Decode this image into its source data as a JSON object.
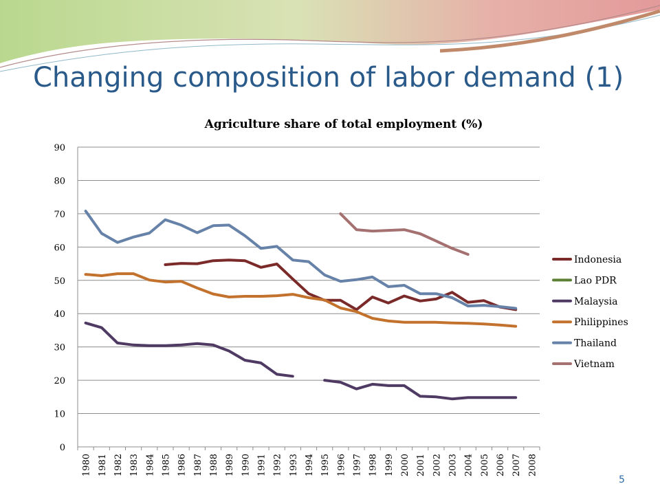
{
  "slide": {
    "title": "Changing composition of labor demand (1)",
    "page_number": "5"
  },
  "colors": {
    "title": "#2a5a8a",
    "banner_green": "#b9d88e",
    "banner_pink": "#e6a4a4"
  },
  "chart_data": {
    "type": "line",
    "title": "Agriculture share of total employment  (%)",
    "xlabel": "",
    "ylabel": "",
    "categories": [
      "1980",
      "1981",
      "1982",
      "1983",
      "1984",
      "1985",
      "1986",
      "1987",
      "1988",
      "1989",
      "1990",
      "1991",
      "1992",
      "1993",
      "1994",
      "1995",
      "1996",
      "1997",
      "1998",
      "1999",
      "2000",
      "2001",
      "2002",
      "2003",
      "2004",
      "2005",
      "2006",
      "2007",
      "2008"
    ],
    "ylim": [
      0,
      90
    ],
    "yticks": [
      0,
      10,
      20,
      30,
      40,
      50,
      60,
      70,
      80,
      90
    ],
    "grid": true,
    "legend_position": "right",
    "series": [
      {
        "name": "Indonesia",
        "color": "#7b2a2a",
        "values": [
          null,
          null,
          null,
          null,
          null,
          54.7,
          55.1,
          55.0,
          55.9,
          56.1,
          55.9,
          53.9,
          54.9,
          50.4,
          46.0,
          44.0,
          44.0,
          41.2,
          45.0,
          43.2,
          45.3,
          43.8,
          44.4,
          46.4,
          43.4,
          43.9,
          42.0,
          41.2,
          null
        ]
      },
      {
        "name": "Lao PDR",
        "color": "#5d7f35",
        "values": [
          null,
          null,
          null,
          null,
          null,
          null,
          null,
          null,
          null,
          null,
          null,
          null,
          null,
          null,
          null,
          null,
          null,
          null,
          null,
          null,
          null,
          null,
          null,
          null,
          null,
          null,
          null,
          null,
          null
        ]
      },
      {
        "name": "Malaysia",
        "color": "#4f3a63",
        "values": [
          37.2,
          35.8,
          31.2,
          30.6,
          30.4,
          30.4,
          30.6,
          31.0,
          30.6,
          28.8,
          26.0,
          25.2,
          21.8,
          21.2,
          null,
          20.0,
          19.4,
          17.4,
          18.8,
          18.4,
          18.4,
          15.2,
          15.0,
          14.4,
          14.8,
          14.8,
          14.8,
          14.8,
          null
        ]
      },
      {
        "name": "Philippines",
        "color": "#c2722d",
        "values": [
          51.8,
          51.4,
          52.0,
          52.0,
          50.1,
          49.5,
          49.7,
          47.7,
          45.9,
          45.0,
          45.2,
          45.2,
          45.4,
          45.8,
          44.8,
          44.1,
          41.7,
          40.6,
          38.6,
          37.8,
          37.4,
          37.4,
          37.4,
          37.2,
          37.1,
          36.9,
          36.6,
          36.2,
          null
        ]
      },
      {
        "name": "Thailand",
        "color": "#6682a8",
        "values": [
          70.8,
          64.1,
          61.4,
          63.0,
          64.2,
          68.2,
          66.6,
          64.3,
          66.4,
          66.6,
          63.4,
          59.6,
          60.2,
          56.1,
          55.6,
          51.6,
          49.7,
          50.2,
          51.0,
          48.1,
          48.5,
          46.0,
          46.0,
          44.8,
          42.3,
          42.5,
          42.1,
          41.6,
          null
        ]
      },
      {
        "name": "Vietnam",
        "color": "#a57070",
        "values": [
          null,
          null,
          null,
          null,
          null,
          null,
          null,
          null,
          null,
          null,
          null,
          null,
          null,
          null,
          null,
          null,
          70.0,
          65.2,
          64.8,
          65.0,
          65.2,
          64.0,
          61.8,
          59.6,
          57.8,
          null,
          null,
          null,
          null
        ]
      }
    ]
  }
}
